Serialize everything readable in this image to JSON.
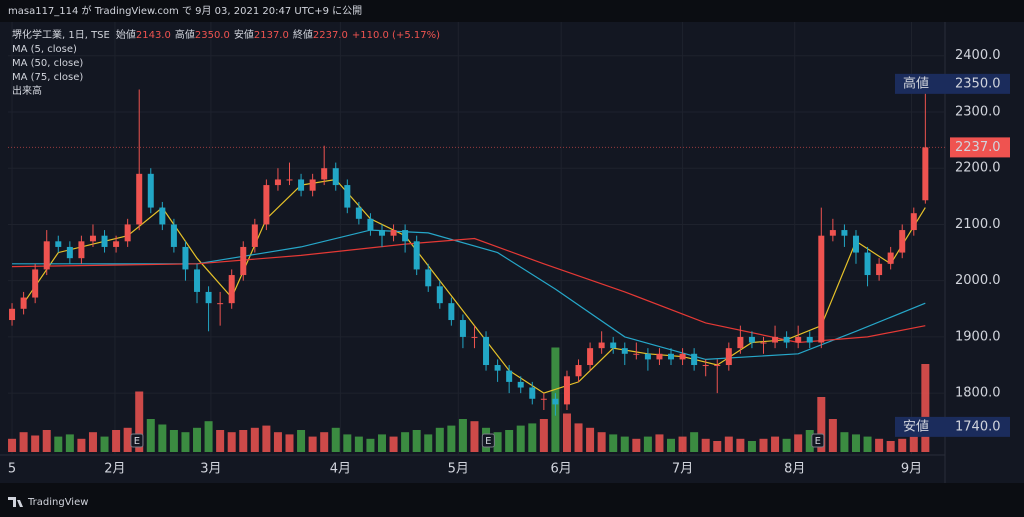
{
  "header": "masa117_114 が TradingView.com で 9月 03, 2021 20:47 UTC+9 に公開",
  "footer": "TradingView",
  "chart_data": {
    "type": "candlestick",
    "legend": {
      "symbol": "堺化学工業, 1日, TSE",
      "fields": [
        {
          "name": "始値",
          "label": "2143.0"
        },
        {
          "name": "高値",
          "label": "2350.0"
        },
        {
          "name": "安値",
          "label": "2137.0"
        },
        {
          "name": "終値",
          "label": "2237.0"
        }
      ],
      "change": "+110.0 (+5.17%)",
      "volume_name": "出来高"
    },
    "up_color": "#ef5350",
    "down_color": "#22a7c6",
    "vol_up_color": "#ef5350",
    "vol_down_color": "#43a047",
    "xlim": [
      -0.35,
      80.7
    ],
    "ylim": [
      1690,
      2460
    ],
    "volume_lim": [
      0,
      100
    ],
    "xticks": [
      {
        "value": 0,
        "label": "5"
      },
      {
        "value": 8.9,
        "label": "2月"
      },
      {
        "value": 17.2,
        "label": "3月"
      },
      {
        "value": 28.4,
        "label": "4月"
      },
      {
        "value": 38.6,
        "label": "5月"
      },
      {
        "value": 47.5,
        "label": "6月"
      },
      {
        "value": 58,
        "label": "7月"
      },
      {
        "value": 67.7,
        "label": "8月"
      },
      {
        "value": 77.8,
        "label": "9月"
      }
    ],
    "yticks": [
      {
        "value": 1800,
        "label": "1800.0"
      },
      {
        "value": 1900,
        "label": "1900.0"
      },
      {
        "value": 2000,
        "label": "2000.0"
      },
      {
        "value": 2100,
        "label": "2100.0"
      },
      {
        "value": 2200,
        "label": "2200.0"
      },
      {
        "value": 2300,
        "label": "2300.0"
      },
      {
        "value": 2400,
        "label": "2400.0"
      }
    ],
    "grid": true,
    "open": [
      1930,
      1950,
      1970,
      2020,
      2070,
      2060,
      2040,
      2070,
      2080,
      2060,
      2070,
      2100,
      2190,
      2130,
      2100,
      2060,
      2020,
      1980,
      1960,
      1960,
      2010,
      2060,
      2100,
      2170,
      2180,
      2180,
      2160,
      2180,
      2200,
      2170,
      2130,
      2110,
      2090,
      2080,
      2090,
      2070,
      2020,
      1990,
      1960,
      1930,
      1900,
      1900,
      1850,
      1840,
      1820,
      1810,
      1790,
      1790,
      1780,
      1830,
      1850,
      1880,
      1890,
      1880,
      1870,
      1870,
      1860,
      1870,
      1860,
      1870,
      1850,
      1850,
      1850,
      1880,
      1900,
      1890,
      1890,
      1900,
      1890,
      1900,
      1890,
      2080,
      2090,
      2080,
      2050,
      2010,
      2030,
      2050,
      2090,
      2143
    ],
    "high": [
      1960,
      1980,
      2030,
      2090,
      2080,
      2070,
      2080,
      2100,
      2090,
      2080,
      2110,
      2340,
      2200,
      2140,
      2110,
      2070,
      2030,
      1990,
      1980,
      2020,
      2070,
      2110,
      2180,
      2200,
      2210,
      2190,
      2190,
      2240,
      2210,
      2180,
      2140,
      2120,
      2100,
      2100,
      2100,
      2080,
      2030,
      2000,
      1970,
      1940,
      1920,
      1910,
      1860,
      1850,
      1830,
      1820,
      1800,
      1800,
      1840,
      1860,
      1890,
      1910,
      1900,
      1890,
      1890,
      1880,
      1880,
      1880,
      1880,
      1880,
      1860,
      1860,
      1890,
      1920,
      1910,
      1900,
      1920,
      1910,
      1920,
      1910,
      2130,
      2110,
      2100,
      2090,
      2060,
      2040,
      2060,
      2100,
      2130,
      2350
    ],
    "low": [
      1920,
      1940,
      1960,
      2010,
      2050,
      2030,
      2030,
      2060,
      2050,
      2050,
      2060,
      2090,
      2120,
      2090,
      2050,
      2000,
      1960,
      1910,
      1920,
      1950,
      2000,
      2050,
      2090,
      2160,
      2170,
      2150,
      2150,
      2170,
      2160,
      2120,
      2100,
      2080,
      2060,
      2070,
      2050,
      2010,
      1980,
      1950,
      1920,
      1880,
      1880,
      1840,
      1820,
      1800,
      1800,
      1780,
      1770,
      1760,
      1770,
      1820,
      1840,
      1870,
      1870,
      1850,
      1860,
      1840,
      1850,
      1850,
      1850,
      1840,
      1830,
      1800,
      1840,
      1870,
      1880,
      1870,
      1880,
      1880,
      1880,
      1880,
      1880,
      2070,
      2060,
      2030,
      1990,
      2000,
      2020,
      2040,
      2080,
      2137
    ],
    "close": [
      1950,
      1970,
      2020,
      2070,
      2060,
      2040,
      2070,
      2080,
      2060,
      2070,
      2100,
      2190,
      2130,
      2100,
      2060,
      2020,
      1980,
      1960,
      1960,
      2010,
      2060,
      2100,
      2170,
      2180,
      2180,
      2160,
      2180,
      2200,
      2170,
      2130,
      2110,
      2090,
      2080,
      2090,
      2070,
      2020,
      1990,
      1960,
      1930,
      1900,
      1900,
      1850,
      1840,
      1820,
      1810,
      1790,
      1790,
      1780,
      1830,
      1850,
      1880,
      1890,
      1880,
      1870,
      1870,
      1860,
      1870,
      1860,
      1870,
      1850,
      1850,
      1850,
      1880,
      1900,
      1890,
      1890,
      1900,
      1890,
      1900,
      1890,
      2080,
      2090,
      2080,
      2050,
      2010,
      2030,
      2050,
      2090,
      2120,
      2237
    ],
    "volume": [
      12,
      18,
      15,
      20,
      14,
      16,
      12,
      18,
      14,
      20,
      22,
      55,
      30,
      25,
      20,
      18,
      22,
      28,
      20,
      18,
      20,
      22,
      24,
      18,
      16,
      20,
      14,
      18,
      22,
      16,
      14,
      12,
      16,
      14,
      18,
      20,
      16,
      22,
      24,
      30,
      28,
      22,
      18,
      20,
      24,
      26,
      30,
      95,
      35,
      26,
      22,
      18,
      16,
      14,
      12,
      14,
      16,
      12,
      14,
      18,
      12,
      10,
      14,
      12,
      10,
      12,
      14,
      12,
      16,
      20,
      50,
      30,
      18,
      16,
      14,
      12,
      10,
      12,
      14,
      80
    ],
    "series": [
      {
        "name": "MA (5, close)",
        "color": "#e6c229",
        "x": [
          1,
          4,
          7,
          10,
          13,
          16,
          19,
          22,
          25,
          28,
          31,
          34,
          37,
          40,
          43,
          46,
          49,
          52,
          55,
          58,
          61,
          64,
          67,
          70,
          73,
          76,
          79
        ],
        "values": [
          1960,
          2050,
          2065,
          2080,
          2130,
          2040,
          1970,
          2110,
          2170,
          2180,
          2110,
          2080,
          2000,
          1920,
          1840,
          1800,
          1820,
          1880,
          1870,
          1865,
          1850,
          1890,
          1895,
          1920,
          2070,
          2030,
          2130
        ]
      },
      {
        "name": "MA (50, close)",
        "color": "#26a7c9",
        "x": [
          0,
          16,
          25,
          31,
          36,
          42,
          47,
          53,
          60,
          68,
          73,
          79
        ],
        "values": [
          2030,
          2030,
          2060,
          2090,
          2085,
          2050,
          1985,
          1900,
          1860,
          1870,
          1910,
          1960
        ]
      },
      {
        "name": "MA (75, close)",
        "color": "#e53935",
        "x": [
          0,
          16,
          25,
          34,
          40,
          46,
          53,
          60,
          68,
          74,
          79
        ],
        "values": [
          2025,
          2030,
          2045,
          2065,
          2075,
          2030,
          1980,
          1925,
          1890,
          1900,
          1920
        ]
      }
    ],
    "events": {
      "x": [
        10.8,
        41.2,
        69.7
      ],
      "labels": [
        "E",
        "E",
        "E"
      ]
    },
    "high_tag": {
      "name": "高値",
      "value": 2350,
      "label": "2350.0"
    },
    "last_tag": {
      "value": 2237,
      "label": "2237.0"
    },
    "low_tag": {
      "name": "安値",
      "value": 1740,
      "label": "1740.0"
    }
  }
}
